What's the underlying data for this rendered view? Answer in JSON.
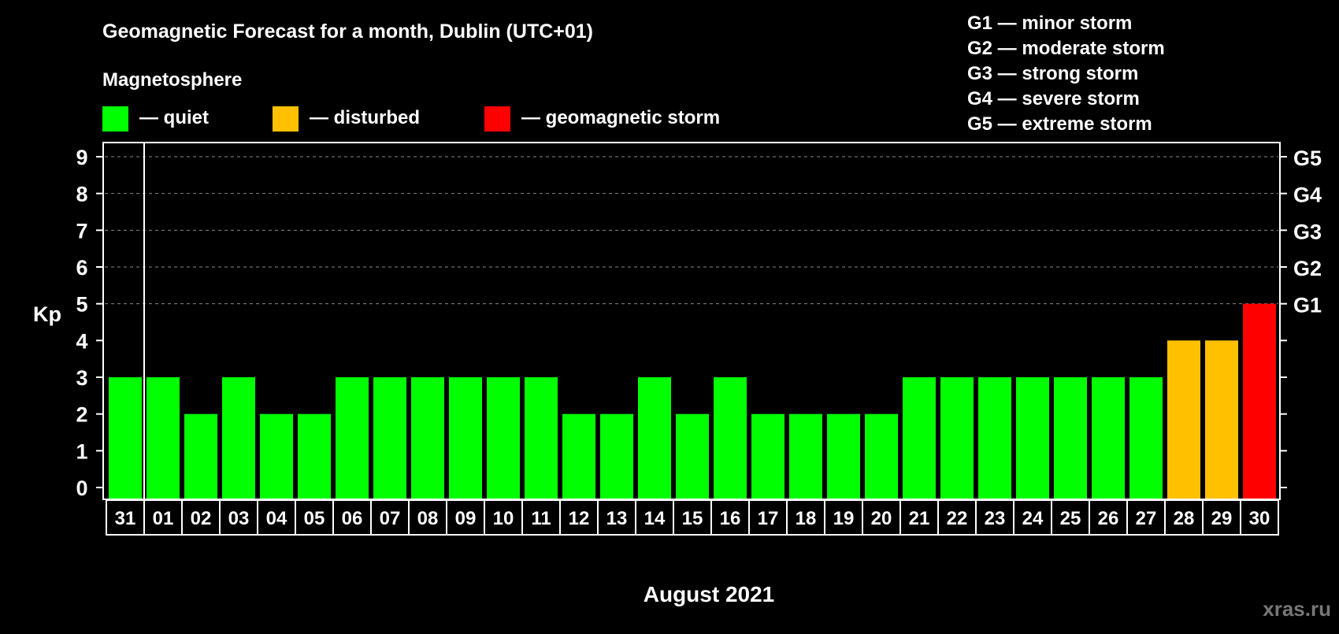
{
  "chart_data": {
    "type": "bar",
    "title": "Geomagnetic Forecast for a month, Dublin (UTC+01)",
    "xlabel": "August 2021",
    "ylabel": "Kp",
    "ylim": [
      0,
      9
    ],
    "grid": true,
    "yticks": [
      "0",
      "1",
      "2",
      "3",
      "4",
      "5",
      "6",
      "7",
      "8",
      "9"
    ],
    "right_ticks": [
      {
        "kp": 5,
        "label": "G1"
      },
      {
        "kp": 6,
        "label": "G2"
      },
      {
        "kp": 7,
        "label": "G3"
      },
      {
        "kp": 8,
        "label": "G4"
      },
      {
        "kp": 9,
        "label": "G5"
      }
    ],
    "categories": [
      "31",
      "01",
      "02",
      "03",
      "04",
      "05",
      "06",
      "07",
      "08",
      "09",
      "10",
      "11",
      "12",
      "13",
      "14",
      "15",
      "16",
      "17",
      "18",
      "19",
      "20",
      "21",
      "22",
      "23",
      "24",
      "25",
      "26",
      "27",
      "28",
      "29",
      "30"
    ],
    "values": [
      3,
      3,
      2,
      3,
      2,
      2,
      3,
      3,
      3,
      3,
      3,
      3,
      2,
      2,
      3,
      2,
      3,
      2,
      2,
      2,
      2,
      3,
      3,
      3,
      3,
      3,
      3,
      3,
      4,
      4,
      5
    ],
    "colors": {
      "quiet": "#00ff00",
      "disturbed": "#ffc000",
      "storm": "#ff0000"
    }
  },
  "legend": {
    "heading": "Magnetosphere",
    "items": [
      {
        "label": "— quiet",
        "color": "#00ff00"
      },
      {
        "label": "— disturbed",
        "color": "#ffc000"
      },
      {
        "label": "— geomagnetic storm",
        "color": "#ff0000"
      }
    ]
  },
  "storm_scale": [
    "G1 — minor storm",
    "G2 — moderate storm",
    "G3 — strong storm",
    "G4 — severe storm",
    "G5 — extreme storm"
  ],
  "watermark": "xras.ru"
}
